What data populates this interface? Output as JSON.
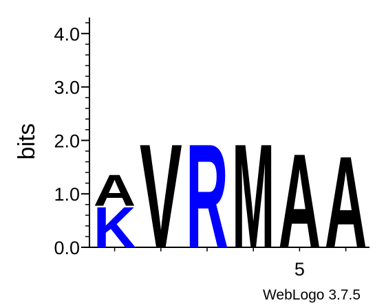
{
  "chart_data": {
    "type": "sequence-logo",
    "ylabel": "bits",
    "ylim": [
      0,
      4.3
    ],
    "y_ticks": [
      "0.0",
      "1.0",
      "2.0",
      "3.0",
      "4.0"
    ],
    "y_tick_values": [
      0,
      1,
      2,
      3,
      4
    ],
    "x_tick_labels": [
      {
        "position": 5,
        "label": "5"
      }
    ],
    "positions": [
      {
        "index": 1,
        "stack": [
          {
            "letter": "K",
            "height": 0.78,
            "color": "#0000ff"
          },
          {
            "letter": "A",
            "height": 0.6,
            "color": "#000000"
          }
        ]
      },
      {
        "index": 2,
        "stack": [
          {
            "letter": "V",
            "height": 2.0,
            "color": "#000000"
          }
        ]
      },
      {
        "index": 3,
        "stack": [
          {
            "letter": "R",
            "height": 2.0,
            "color": "#0000ff"
          }
        ]
      },
      {
        "index": 4,
        "stack": [
          {
            "letter": "M",
            "height": 2.0,
            "color": "#000000"
          }
        ]
      },
      {
        "index": 5,
        "stack": [
          {
            "letter": "A",
            "height": 1.81,
            "color": "#000000"
          }
        ]
      },
      {
        "index": 6,
        "stack": [
          {
            "letter": "A",
            "height": 1.76,
            "color": "#000000"
          }
        ]
      }
    ],
    "credit": "WebLogo 3.7.5"
  }
}
